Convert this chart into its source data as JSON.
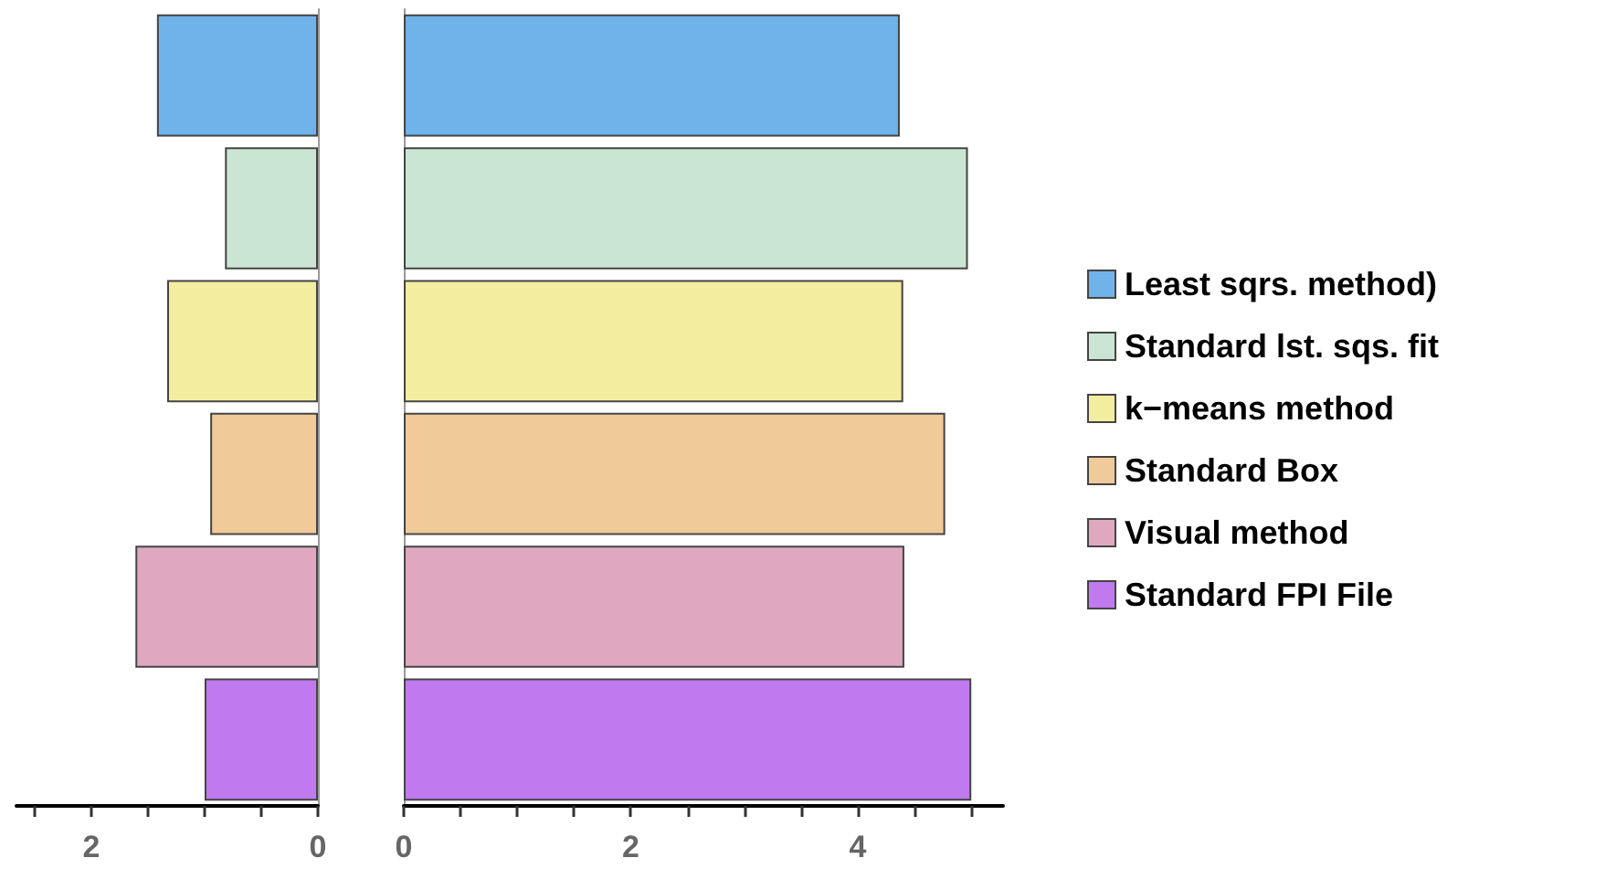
{
  "chart_data": [
    {
      "type": "bar",
      "orientation": "horizontal",
      "categories": [
        null,
        null,
        null,
        null,
        null,
        null
      ],
      "series": [
        {
          "color": "#6fb3ea",
          "values": [
            1.42,
            null,
            null,
            null,
            null,
            null
          ]
        },
        {
          "color": "#cbe5d5",
          "values": [
            null,
            0.82,
            null,
            null,
            null,
            null
          ]
        },
        {
          "color": "#f3ed9f",
          "values": [
            null,
            null,
            1.33,
            null,
            null,
            null
          ]
        },
        {
          "color": "#f0ca98",
          "values": [
            null,
            null,
            null,
            0.95,
            null,
            null
          ]
        },
        {
          "color": "#dfa8c0",
          "values": [
            null,
            null,
            null,
            null,
            1.61,
            null
          ]
        },
        {
          "color": "#c079ef",
          "values": [
            null,
            null,
            null,
            null,
            null,
            1.0
          ]
        }
      ],
      "xlim": [
        2.66,
        0
      ],
      "xticks": [
        {
          "value": 2.5,
          "label": null
        },
        2,
        {
          "value": 1.5,
          "label": null
        },
        {
          "value": 1,
          "label": null
        },
        {
          "value": 0.5,
          "label": null
        },
        0
      ],
      "tick_labels": "x"
    },
    {
      "type": "bar",
      "orientation": "horizontal",
      "categories": [
        null,
        null,
        null,
        null,
        null,
        null
      ],
      "series": [
        {
          "name": "Least sqrs. method)",
          "color": "#6fb3ea",
          "values": [
            4.37,
            null,
            null,
            null,
            null,
            null
          ]
        },
        {
          "name": "Standard lst. sqs. fit",
          "color": "#cbe5d5",
          "values": [
            null,
            4.97,
            null,
            null,
            null,
            null
          ]
        },
        {
          "name": "k−means method",
          "color": "#f3ed9f",
          "values": [
            null,
            null,
            4.4,
            null,
            null,
            null
          ]
        },
        {
          "name": "Standard Box",
          "color": "#f0ca98",
          "values": [
            null,
            null,
            null,
            4.77,
            null,
            null
          ]
        },
        {
          "name": "Visual method",
          "color": "#dfa8c0",
          "values": [
            null,
            null,
            null,
            null,
            4.41,
            null
          ]
        },
        {
          "name": "Standard FPI File",
          "color": "#c079ef",
          "values": [
            null,
            null,
            null,
            null,
            null,
            5.0
          ]
        }
      ],
      "xlim": [
        0,
        5.28
      ],
      "xticks": [
        0,
        {
          "value": 0.5,
          "label": null
        },
        {
          "value": 1,
          "label": null
        },
        {
          "value": 1.5,
          "label": null
        },
        2,
        {
          "value": 2.5,
          "label": null
        },
        {
          "value": 3,
          "label": null
        },
        {
          "value": 3.5,
          "label": null
        },
        4,
        {
          "value": 4.5,
          "label": null
        },
        {
          "value": 5,
          "label": null
        }
      ],
      "tick_labels": "x",
      "legend": "right"
    }
  ]
}
